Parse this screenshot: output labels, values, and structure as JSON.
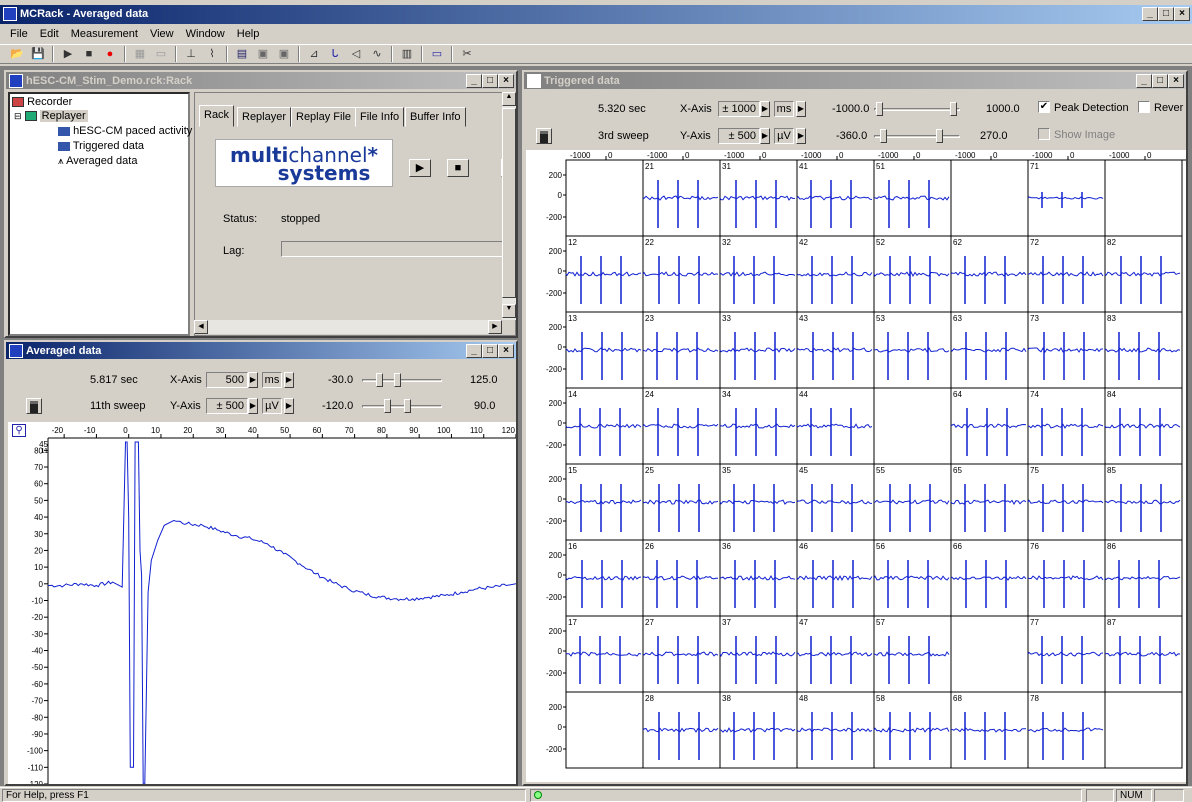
{
  "app": {
    "title": "MCRack - Averaged data"
  },
  "menu": [
    "File",
    "Edit",
    "Measurement",
    "View",
    "Window",
    "Help"
  ],
  "toolbar_icons": [
    "open-icon",
    "save-icon",
    "play-icon",
    "stop-icon",
    "record-icon",
    "grid-icon",
    "display-icon",
    "trigger-icon",
    "spike-icon",
    "analyzer-icon",
    "parameter-icon",
    "average-icon",
    "chart-icon",
    "filter-icon",
    "sound-icon",
    "waveform-icon",
    "histogram-icon",
    "window-icon",
    "cut-icon"
  ],
  "rack": {
    "title": "hESC-CM_Stim_Demo.rck:Rack",
    "tree": [
      {
        "label": "Recorder",
        "level": 0
      },
      {
        "label": "Replayer",
        "level": 0
      },
      {
        "label": "hESC-CM paced activity",
        "level": 2
      },
      {
        "label": "Triggered data",
        "level": 2
      },
      {
        "label": "Averaged data",
        "level": 2
      }
    ],
    "tabs": [
      "Rack",
      "Replayer",
      "Replay File",
      "File Info",
      "Buffer Info"
    ],
    "logo_a": "multi",
    "logo_b": "channel",
    "logo_c": "systems",
    "status_label": "Status:",
    "status_value": "stopped",
    "lag_label": "Lag:"
  },
  "averaged": {
    "title": "Averaged data",
    "time": "5.817 sec",
    "sweep": "11th sweep",
    "xaxis_label": "X-Axis",
    "xaxis_value": "500",
    "xaxis_unit": "ms",
    "yaxis_label": "Y-Axis",
    "yaxis_value": "± 500",
    "yaxis_unit": "µV",
    "x_min": "-30.0",
    "x_max": "125.0",
    "y_min": "-120.0",
    "y_max": "90.0"
  },
  "triggered": {
    "title": "Triggered data",
    "time": "5.320 sec",
    "sweep": "3rd sweep",
    "xaxis_label": "X-Axis",
    "xaxis_value": "± 1000",
    "xaxis_unit": "ms",
    "yaxis_label": "Y-Axis",
    "yaxis_value": "± 500",
    "yaxis_unit": "µV",
    "x_min": "-1000.0",
    "x_max": "1000.0",
    "y_min": "-360.0",
    "y_max": "270.0",
    "peak_detection": "Peak Detection",
    "reverse": "Rever",
    "show_image": "Show Image"
  },
  "grid": {
    "col_ticks": [
      "-1000",
      "0"
    ],
    "row_ticks": [
      "200",
      "0",
      "-200"
    ],
    "rows": [
      [
        "",
        "21",
        "31",
        "41",
        "51",
        "",
        "71",
        ""
      ],
      [
        "12",
        "22",
        "32",
        "42",
        "52",
        "62",
        "72",
        "82"
      ],
      [
        "13",
        "23",
        "33",
        "43",
        "53",
        "63",
        "73",
        "83"
      ],
      [
        "14",
        "24",
        "34",
        "44",
        "",
        "64",
        "74",
        "84"
      ],
      [
        "15",
        "25",
        "35",
        "45",
        "55",
        "65",
        "75",
        "85"
      ],
      [
        "16",
        "26",
        "36",
        "46",
        "56",
        "66",
        "76",
        "86"
      ],
      [
        "17",
        "27",
        "37",
        "47",
        "57",
        "",
        "77",
        "87"
      ],
      [
        "",
        "28",
        "38",
        "48",
        "58",
        "68",
        "78",
        ""
      ]
    ],
    "empty": [
      "0-0",
      "0-5",
      "0-7",
      "3-4",
      "6-5",
      "7-0",
      "7-7"
    ],
    "flat": [
      "0-6"
    ]
  },
  "chart_data": {
    "type": "line",
    "title": "",
    "xlabel": "",
    "ylabel": "",
    "xlim": [
      -25,
      120
    ],
    "ylim": [
      -120,
      85
    ],
    "x_ticks": [
      "-20",
      "-10",
      "0",
      "10",
      "20",
      "30",
      "40",
      "50",
      "60",
      "70",
      "80",
      "90",
      "100",
      "110",
      "120"
    ],
    "y_ticks": [
      "80",
      "70",
      "60",
      "50",
      "40",
      "30",
      "20",
      "10",
      "0",
      "-10",
      "-20",
      "-30",
      "-40",
      "-50",
      "-60",
      "-70",
      "-80",
      "-90",
      "-100",
      "-110",
      "-120"
    ],
    "top_labels": [
      "45",
      "11"
    ],
    "series": [
      {
        "x": [
          -25,
          -20,
          -15,
          -10,
          -5,
          -2,
          -1,
          -0.5,
          0,
          0.5,
          1.5,
          2,
          3,
          3.5,
          4,
          4.5,
          5,
          6,
          7,
          9,
          11,
          14,
          18,
          23,
          28,
          33,
          38,
          43,
          48,
          53,
          58,
          63,
          68,
          73,
          78,
          83,
          88,
          93,
          98,
          103,
          108,
          113,
          117,
          120
        ],
        "y": [
          -1,
          -1,
          0,
          -1,
          1,
          -2,
          85,
          85,
          40,
          -110,
          -110,
          85,
          85,
          20,
          5,
          -120,
          -120,
          -5,
          14,
          26,
          35,
          38,
          36,
          35,
          32,
          29,
          27,
          24,
          18,
          12,
          6,
          1,
          -3,
          -6,
          -8,
          -9,
          -9,
          -8,
          -7,
          -5,
          -3,
          -2,
          -1,
          0
        ]
      }
    ]
  },
  "status": {
    "help": "For Help, press F1",
    "num": "NUM"
  }
}
